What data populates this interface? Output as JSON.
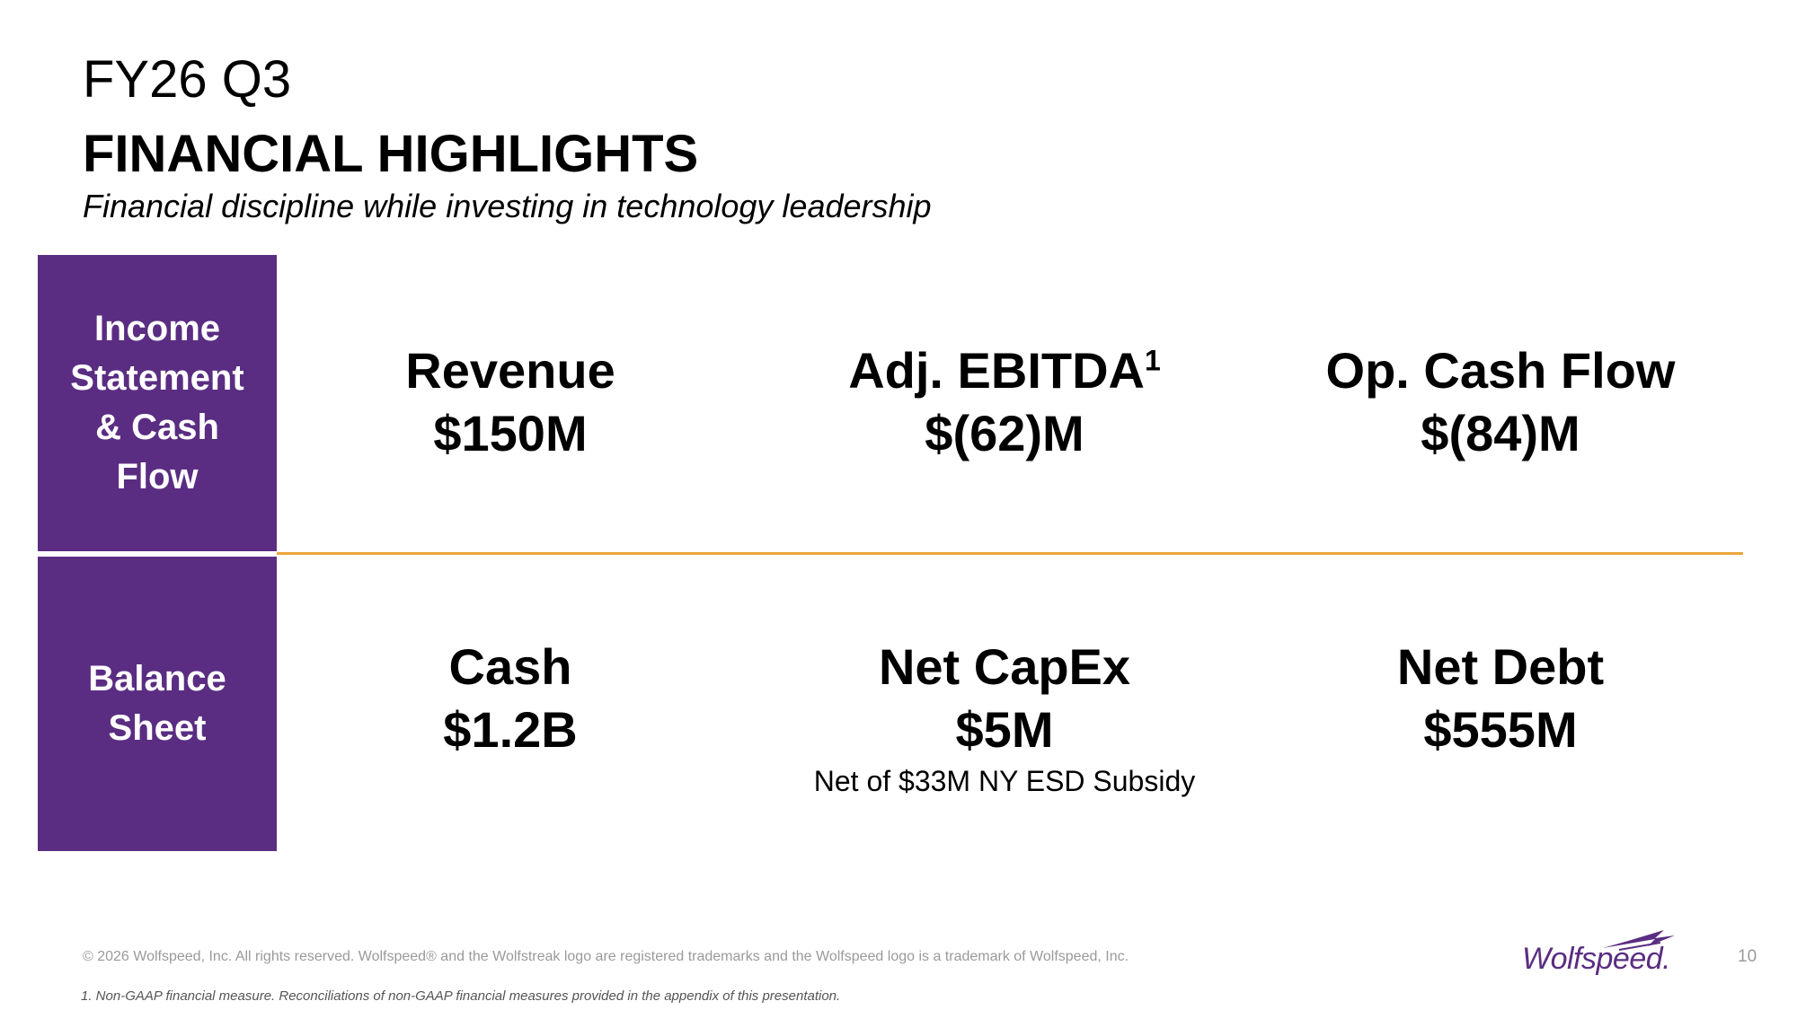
{
  "header": {
    "title_line1": "FY26 Q3",
    "title_line2": "FINANCIAL HIGHLIGHTS",
    "subtitle": "Financial discipline while investing in technology leadership"
  },
  "sections": {
    "income": {
      "label": "Income Statement & Cash Flow"
    },
    "balance": {
      "label": "Balance Sheet"
    }
  },
  "metrics": {
    "revenue": {
      "label": "Revenue",
      "value": "$150M"
    },
    "adj_ebitda": {
      "label": "Adj. EBITDA",
      "footnote_marker": "1",
      "value": "$(62)M"
    },
    "op_cash_flow": {
      "label": "Op. Cash Flow",
      "value": "$(84)M"
    },
    "cash": {
      "label": "Cash",
      "value": "$1.2B"
    },
    "net_capex": {
      "label": "Net CapEx",
      "value": "$5M",
      "note": "Net of $33M NY ESD Subsidy"
    },
    "net_debt": {
      "label": "Net Debt",
      "value": "$555M"
    }
  },
  "footer": {
    "copyright": "© 2026 Wolfspeed, Inc. All rights reserved. Wolfspeed® and the Wolfstreak logo are registered trademarks and the Wolfspeed logo is a trademark of Wolfspeed, Inc.",
    "footnote": "1. Non-GAAP financial measure. Reconciliations of non-GAAP financial measures provided in the appendix of this presentation.",
    "page_number": "10",
    "logo_text": "Wolfspeed."
  },
  "colors": {
    "brand_purple": "#5a2d82",
    "divider_gold": "#e9a53b"
  }
}
